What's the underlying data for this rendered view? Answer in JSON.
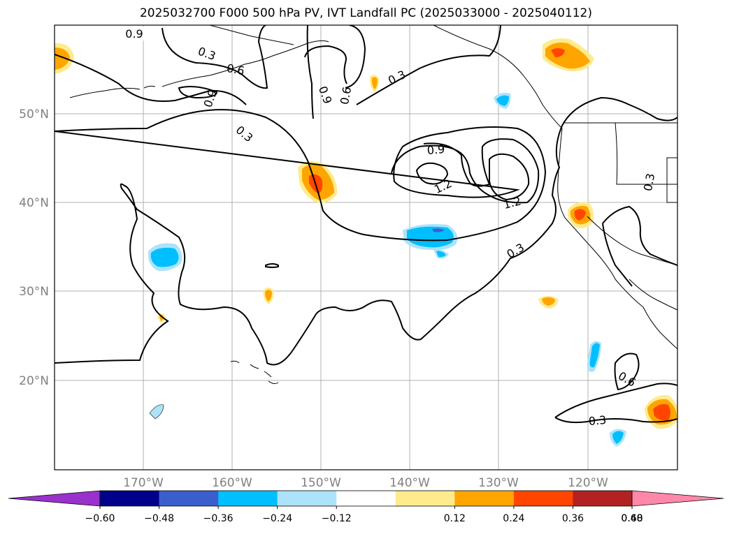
{
  "title": "2025032700 F000 500 hPa PV, IVT Landfall PC (2025033000 - 2025040112)",
  "map": {
    "lat_labels": [
      "50°N",
      "40°N",
      "30°N",
      "20°N"
    ],
    "lon_labels": [
      "170°W",
      "160°W",
      "150°W",
      "140°W",
      "130°W",
      "120°W"
    ],
    "contour_labels": [
      "0.9",
      "0.3",
      "0.6",
      "0.9",
      "0.9",
      "0.6",
      "0.3",
      "0.3",
      "0.9",
      "1.2",
      "1.2",
      "0.3",
      "0.3",
      "0.6",
      "0.3"
    ]
  },
  "colorbar": {
    "ticks": [
      "−0.60",
      "−0.48",
      "−0.36",
      "−0.24",
      "−0.12",
      "0.12",
      "0.24",
      "0.36",
      "0.48",
      "0.60"
    ],
    "colors": {
      "extend_min": "#9932CC",
      "bins": [
        "#00008B",
        "#3A5FCD",
        "#00BFFF",
        "#ADE3FA",
        "#FFFFFF",
        "#FFEB8C",
        "#FFA500",
        "#FF4500",
        "#B22222"
      ],
      "extend_max": "#FF88AA"
    }
  }
}
